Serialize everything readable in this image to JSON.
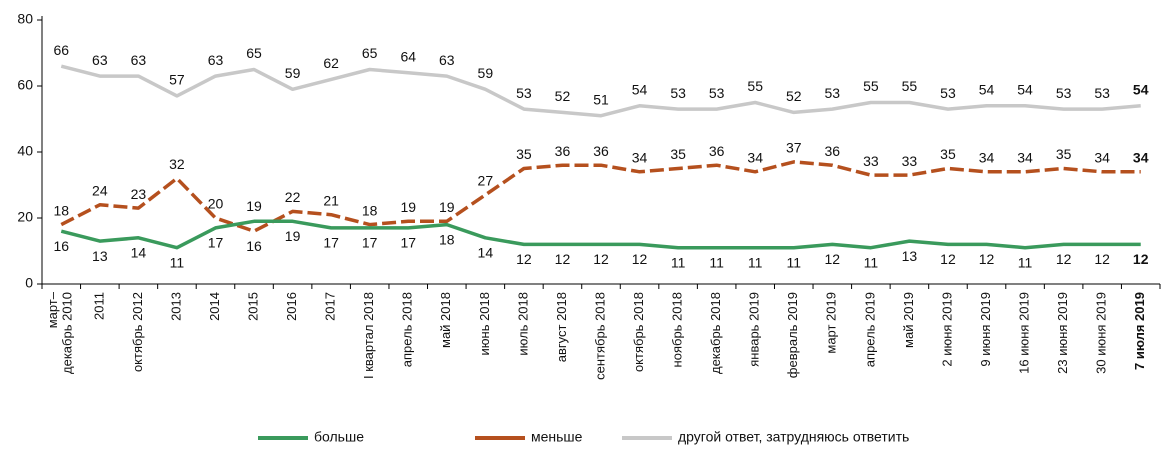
{
  "chart_data": {
    "type": "line",
    "categories": [
      "март–\nдекабрь 2010",
      "2011",
      "октябрь 2012",
      "2013",
      "2014",
      "2015",
      "2016",
      "2017",
      "I квартал 2018",
      "апрель 2018",
      "май 2018",
      "июнь 2018",
      "июль 2018",
      "август 2018",
      "сентябрь 2018",
      "октябрь 2018",
      "ноябрь 2018",
      "декабрь 2018",
      "январь 2019",
      "февраль 2019",
      "март 2019",
      "апрель 2019",
      "май 2019",
      "2 июня 2019",
      "9 июня 2019",
      "16 июня 2019",
      "23 июня 2019",
      "30 июня 2019",
      "7 июля 2019"
    ],
    "series": [
      {
        "name": "больше",
        "color": "#3a9a5c",
        "values": [
          16,
          13,
          14,
          11,
          17,
          19,
          19,
          17,
          17,
          17,
          18,
          14,
          12,
          12,
          12,
          12,
          11,
          11,
          11,
          11,
          12,
          11,
          13,
          12,
          12,
          11,
          12,
          12,
          12
        ]
      },
      {
        "name": "меньше",
        "color": "#b5501e",
        "dashed": true,
        "values": [
          18,
          24,
          23,
          32,
          20,
          16,
          22,
          21,
          18,
          19,
          19,
          27,
          35,
          36,
          36,
          34,
          35,
          36,
          34,
          37,
          36,
          33,
          33,
          35,
          34,
          34,
          35,
          34,
          34
        ]
      },
      {
        "name": "другой ответ, затрудняюсь ответить",
        "color": "#c8c8c8",
        "values": [
          66,
          63,
          63,
          57,
          63,
          65,
          59,
          62,
          65,
          64,
          63,
          59,
          53,
          52,
          51,
          54,
          53,
          53,
          55,
          52,
          53,
          55,
          55,
          53,
          54,
          54,
          53,
          53,
          54
        ]
      }
    ],
    "ylim": [
      0,
      80
    ],
    "yticks": [
      0,
      20,
      40,
      60,
      80
    ]
  }
}
